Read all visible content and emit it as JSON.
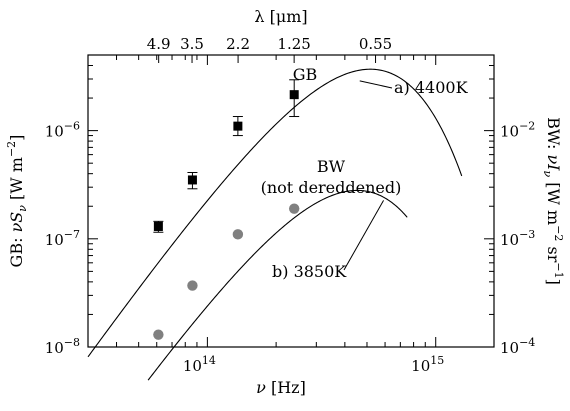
{
  "chart_data": {
    "type": "scatter",
    "x_axis": {
      "label_parts": [
        "ν",
        "[Hz]"
      ],
      "scale": "log",
      "range_hz": [
        30000000000000.0,
        1800000000000000.0
      ],
      "labeled_ticks": [
        {
          "value": 100000000000000.0,
          "mantissa": "10",
          "exp": "14"
        },
        {
          "value": 1000000000000000.0,
          "mantissa": "10",
          "exp": "15"
        }
      ]
    },
    "top_axis": {
      "label_parts": [
        "λ",
        "[μm]"
      ],
      "tick_labels": [
        {
          "text": "4.9",
          "um": 4.9
        },
        {
          "text": "3.5",
          "um": 3.5
        },
        {
          "text": "2.2",
          "um": 2.2
        },
        {
          "text": "1.25",
          "um": 1.25
        },
        {
          "text": "0.55",
          "um": 0.55
        }
      ]
    },
    "left_axis": {
      "label_parts": [
        "GB:",
        "νS",
        "ν",
        "[W m",
        "−2",
        "]"
      ],
      "scale": "log",
      "range": [
        1e-08,
        5e-06
      ],
      "labeled_ticks": [
        {
          "value": 1e-08,
          "mantissa": "10",
          "exp": "−8"
        },
        {
          "value": 1e-07,
          "mantissa": "10",
          "exp": "−7"
        },
        {
          "value": 1e-06,
          "mantissa": "10",
          "exp": "−6"
        }
      ]
    },
    "right_axis": {
      "label_parts": [
        "BW:",
        "νI",
        "ν",
        "[W m",
        "−2",
        "sr",
        "−1",
        "]"
      ],
      "scale": "log",
      "range": [
        0.0001,
        0.05
      ],
      "labeled_ticks": [
        {
          "value": 0.0001,
          "mantissa": "10",
          "exp": "−4"
        },
        {
          "value": 0.001,
          "mantissa": "10",
          "exp": "−3"
        },
        {
          "value": 0.01,
          "mantissa": "10",
          "exp": "−2"
        }
      ]
    },
    "series": [
      {
        "name": "GB",
        "marker": "square",
        "color": "#000000",
        "points": [
          {
            "x": 61000000000000.0,
            "y": 1.3e-07,
            "yerr": [
              1.15e-07,
              1.45e-07
            ]
          },
          {
            "x": 86000000000000.0,
            "y": 3.5e-07,
            "yerr": [
              2.9e-07,
              4.1e-07
            ]
          },
          {
            "x": 136000000000000.0,
            "y": 1.1e-06,
            "yerr": [
              9e-07,
              1.35e-06
            ]
          },
          {
            "x": 240000000000000.0,
            "y": 2.15e-06,
            "yerr": [
              1.35e-06,
              2.95e-06
            ]
          }
        ]
      },
      {
        "name": "BW",
        "marker": "circle",
        "color": "#808080",
        "points": [
          {
            "x": 61000000000000.0,
            "y": 1.3e-08
          },
          {
            "x": 86000000000000.0,
            "y": 3.7e-08
          },
          {
            "x": 136000000000000.0,
            "y": 1.1e-07
          },
          {
            "x": 240000000000000.0,
            "y": 1.9e-07
          }
        ]
      }
    ],
    "curves": [
      {
        "id": "a",
        "temperature_k": 4400,
        "label": "a) 4400K",
        "peak_x": 372000000000000.0,
        "peak_y": 3.1e-06,
        "x_range": [
          30000000000000.0,
          1300000000000000.0
        ]
      },
      {
        "id": "b",
        "temperature_k": 3850,
        "label": "b) 3850K",
        "peak_x": 326000000000000.0,
        "peak_y": 2.35e-07,
        "x_range": [
          55000000000000.0,
          750000000000000.0
        ]
      }
    ],
    "annotations": {
      "gb_label": "GB",
      "bw_label": "BW",
      "bw_sublabel": "(not dereddened)"
    },
    "grid": false
  }
}
